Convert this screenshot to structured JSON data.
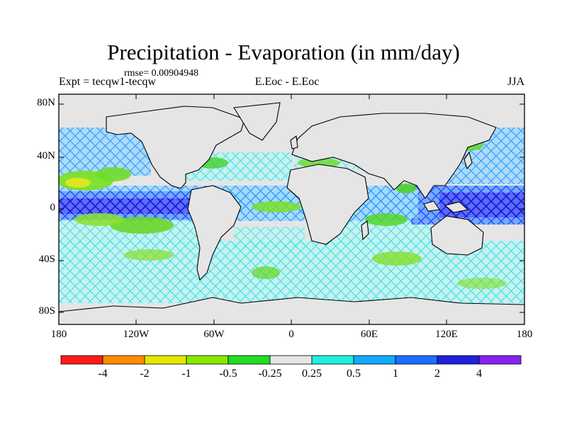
{
  "header": {
    "title": "Precipitation - Evaporation (in mm/day)",
    "rmse": "rmse= 0.00904948",
    "expt": "Expt = tecqw1-tecqw",
    "center": "E.Eoc - E.Eoc",
    "season": "JJA"
  },
  "axes": {
    "lat_labels": [
      "80N",
      "40N",
      "0",
      "40S",
      "80S"
    ],
    "lon_labels": [
      "180",
      "120W",
      "60W",
      "0",
      "60E",
      "120E",
      "180"
    ]
  },
  "colorbar": {
    "colors": [
      "#ff1a1a",
      "#ff8c00",
      "#e6e600",
      "#88e800",
      "#22dd22",
      "#e5e5e5",
      "#22eedd",
      "#12aaff",
      "#1e6cff",
      "#2020dd",
      "#8822ee"
    ],
    "labels": [
      "-4",
      "-2",
      "-1",
      "-0.5",
      "-0.25",
      "0.25",
      "0.5",
      "1",
      "2",
      "4"
    ]
  },
  "map": {
    "background_color": "#e5e5e5"
  }
}
